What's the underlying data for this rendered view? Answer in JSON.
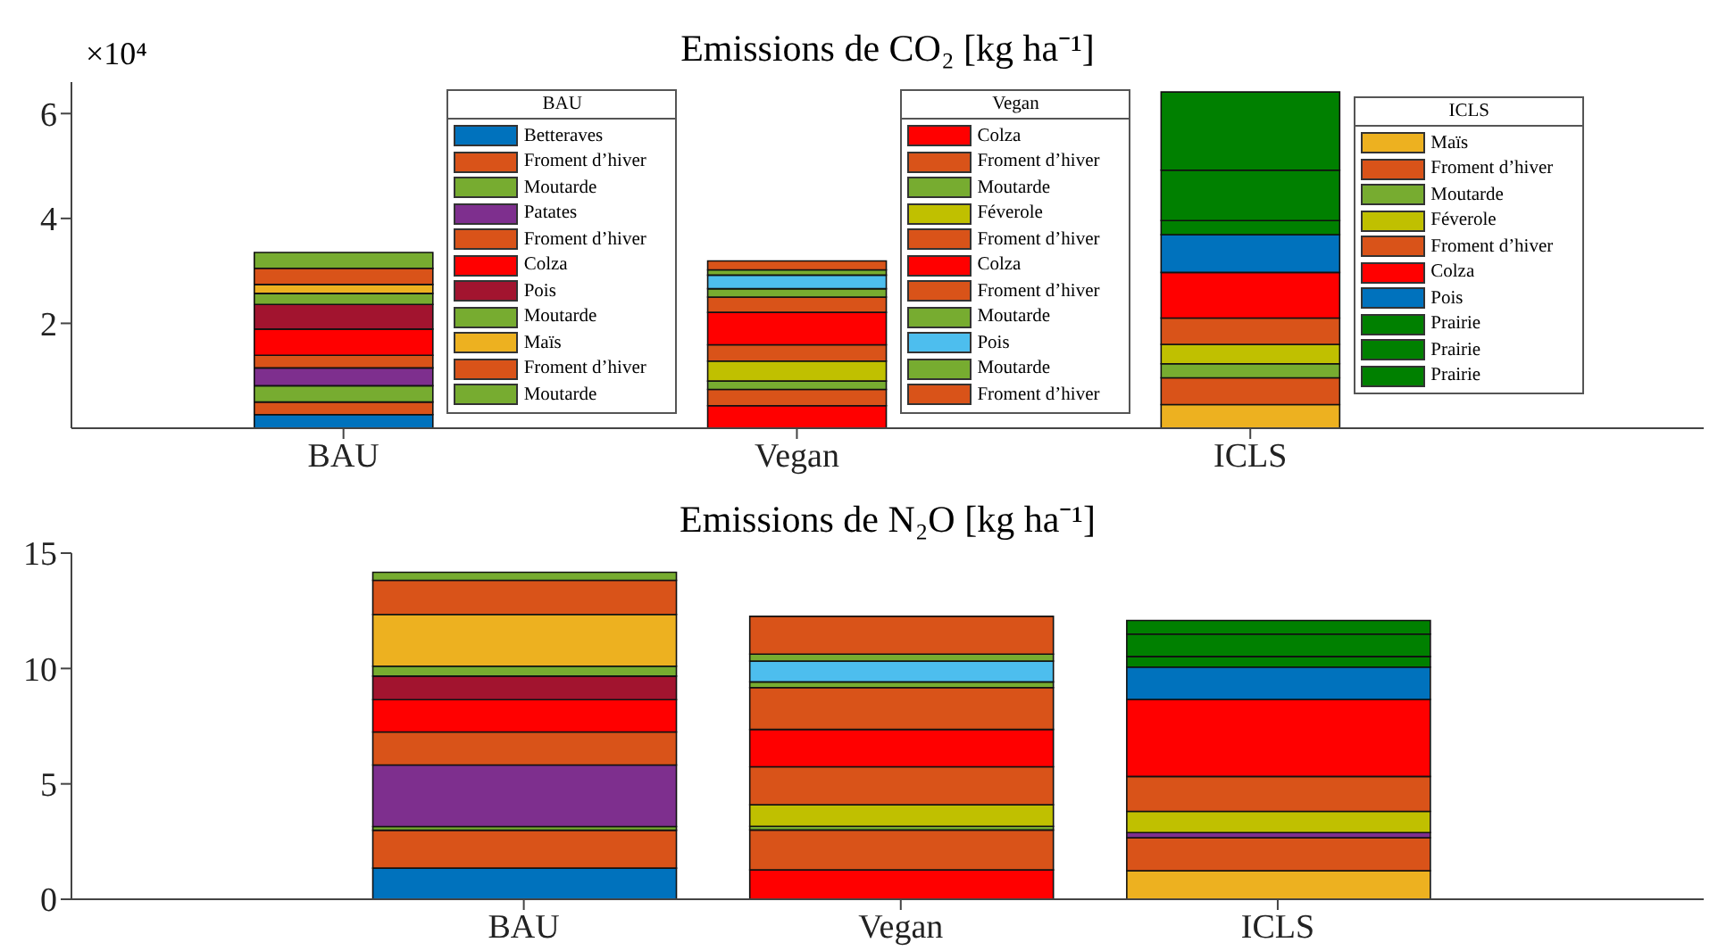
{
  "chart_data": [
    {
      "type": "bar",
      "stacked": true,
      "title": "Emissions de CO₂ [kg ha⁻¹]",
      "annotations": [
        "×10⁴"
      ],
      "categories": [
        "BAU",
        "Vegan",
        "ICLS"
      ],
      "ylim": [
        0,
        6.6
      ],
      "yticks": [
        2,
        4,
        6
      ],
      "grid": false,
      "legend": "right",
      "series": [
        {
          "name": "Betteraves",
          "color": "#0072bd",
          "values": [
            0.26,
            null,
            null
          ]
        },
        {
          "name": "Froment d’hiver",
          "color": "#d95319",
          "values": [
            0.24,
            null,
            null
          ]
        },
        {
          "name": "Moutarde",
          "color": "#77ac30",
          "values": [
            0.31,
            null,
            null
          ]
        },
        {
          "name": "Patates",
          "color": "#7e2f8e",
          "values": [
            0.34,
            null,
            null
          ]
        },
        {
          "name": "Froment d’hiver",
          "color": "#d95319",
          "values": [
            0.24,
            null,
            null
          ]
        },
        {
          "name": "Colza",
          "color": "#ff0000",
          "values": [
            0.5,
            null,
            null
          ]
        },
        {
          "name": "Pois",
          "color": "#a2142f",
          "values": [
            0.47,
            null,
            null
          ]
        },
        {
          "name": "Moutarde",
          "color": "#77ac30",
          "values": [
            0.21,
            null,
            null
          ]
        },
        {
          "name": "Maïs",
          "color": "#edb120",
          "values": [
            0.17,
            null,
            null
          ]
        },
        {
          "name": "Froment d’hiver",
          "color": "#d95319",
          "values": [
            0.31,
            null,
            null
          ]
        },
        {
          "name": "Moutarde",
          "color": "#77ac30",
          "values": [
            0.3,
            null,
            null
          ]
        },
        {
          "name": "Colza",
          "color": "#ff0000",
          "values": [
            null,
            0.43,
            null
          ]
        },
        {
          "name": "Froment d’hiver",
          "color": "#d95319",
          "values": [
            null,
            0.31,
            null
          ]
        },
        {
          "name": "Moutarde",
          "color": "#77ac30",
          "values": [
            null,
            0.16,
            null
          ]
        },
        {
          "name": "Féverole",
          "color": "#c0c000",
          "values": [
            null,
            0.38,
            null
          ]
        },
        {
          "name": "Froment d’hiver",
          "color": "#d95319",
          "values": [
            null,
            0.31,
            null
          ]
        },
        {
          "name": "Colza",
          "color": "#ff0000",
          "values": [
            null,
            0.62,
            null
          ]
        },
        {
          "name": "Froment d’hiver",
          "color": "#d95319",
          "values": [
            null,
            0.29,
            null
          ]
        },
        {
          "name": "Moutarde",
          "color": "#77ac30",
          "values": [
            null,
            0.16,
            null
          ]
        },
        {
          "name": "Pois",
          "color": "#4dbeee",
          "values": [
            null,
            0.26,
            null
          ]
        },
        {
          "name": "Moutarde",
          "color": "#77ac30",
          "values": [
            null,
            0.1,
            null
          ]
        },
        {
          "name": "Froment d’hiver",
          "color": "#d95319",
          "values": [
            null,
            0.17,
            null
          ]
        },
        {
          "name": "Maïs",
          "color": "#edb120",
          "values": [
            null,
            null,
            0.45
          ]
        },
        {
          "name": "Froment d’hiver",
          "color": "#d95319",
          "values": [
            null,
            null,
            0.51
          ]
        },
        {
          "name": "Moutarde",
          "color": "#77ac30",
          "values": [
            null,
            null,
            0.27
          ]
        },
        {
          "name": "Féverole",
          "color": "#c0c000",
          "values": [
            null,
            null,
            0.37
          ]
        },
        {
          "name": "Froment d’hiver",
          "color": "#d95319",
          "values": [
            null,
            null,
            0.5
          ]
        },
        {
          "name": "Colza",
          "color": "#ff0000",
          "values": [
            null,
            null,
            0.87
          ]
        },
        {
          "name": "Pois",
          "color": "#0072bd",
          "values": [
            null,
            null,
            0.72
          ]
        },
        {
          "name": "Prairie",
          "color": "#008000",
          "values": [
            null,
            null,
            0.27
          ]
        },
        {
          "name": "Prairie",
          "color": "#008000",
          "values": [
            null,
            null,
            0.96
          ]
        },
        {
          "name": "Prairie",
          "color": "#008000",
          "values": [
            null,
            null,
            1.49
          ]
        }
      ]
    },
    {
      "type": "bar",
      "stacked": true,
      "title": "Emissions de N₂O [kg ha⁻¹]",
      "categories": [
        "BAU",
        "Vegan",
        "ICLS"
      ],
      "ylim": [
        0,
        15
      ],
      "yticks": [
        0,
        5,
        10,
        15
      ],
      "grid": false,
      "series": [
        {
          "color": "#0072bd",
          "values": [
            1.35,
            null,
            null
          ]
        },
        {
          "color": "#d95319",
          "values": [
            1.64,
            null,
            null
          ]
        },
        {
          "color": "#77ac30",
          "values": [
            0.16,
            null,
            null
          ]
        },
        {
          "color": "#7e2f8e",
          "values": [
            2.67,
            null,
            null
          ]
        },
        {
          "color": "#d95319",
          "values": [
            1.43,
            null,
            null
          ]
        },
        {
          "color": "#ff0000",
          "values": [
            1.4,
            null,
            null
          ]
        },
        {
          "color": "#a2142f",
          "values": [
            1.02,
            null,
            null
          ]
        },
        {
          "color": "#77ac30",
          "values": [
            0.43,
            null,
            null
          ]
        },
        {
          "color": "#edb120",
          "values": [
            2.24,
            null,
            null
          ]
        },
        {
          "color": "#d95319",
          "values": [
            1.48,
            null,
            null
          ]
        },
        {
          "color": "#77ac30",
          "values": [
            0.35,
            null,
            null
          ]
        },
        {
          "color": "#ff0000",
          "values": [
            null,
            1.27,
            null
          ]
        },
        {
          "color": "#d95319",
          "values": [
            null,
            1.73,
            null
          ]
        },
        {
          "color": "#77ac30",
          "values": [
            null,
            0.16,
            null
          ]
        },
        {
          "color": "#c0c000",
          "values": [
            null,
            0.94,
            null
          ]
        },
        {
          "color": "#d95319",
          "values": [
            null,
            1.64,
            null
          ]
        },
        {
          "color": "#ff0000",
          "values": [
            null,
            1.62,
            null
          ]
        },
        {
          "color": "#d95319",
          "values": [
            null,
            1.81,
            null
          ]
        },
        {
          "color": "#77ac30",
          "values": [
            null,
            0.25,
            null
          ]
        },
        {
          "color": "#4dbeee",
          "values": [
            null,
            0.9,
            null
          ]
        },
        {
          "color": "#77ac30",
          "values": [
            null,
            0.3,
            null
          ]
        },
        {
          "color": "#d95319",
          "values": [
            null,
            1.64,
            null
          ]
        },
        {
          "color": "#edb120",
          "values": [
            null,
            null,
            1.24
          ]
        },
        {
          "color": "#d95319",
          "values": [
            null,
            null,
            1.43
          ]
        },
        {
          "color": "#7e2f8e",
          "values": [
            null,
            null,
            0.22
          ]
        },
        {
          "color": "#c0c000",
          "values": [
            null,
            null,
            0.92
          ]
        },
        {
          "color": "#d95319",
          "values": [
            null,
            null,
            1.51
          ]
        },
        {
          "color": "#ff0000",
          "values": [
            null,
            null,
            3.34
          ]
        },
        {
          "color": "#0072bd",
          "values": [
            null,
            null,
            1.4
          ]
        },
        {
          "color": "#008000",
          "values": [
            null,
            null,
            0.46
          ]
        },
        {
          "color": "#008000",
          "values": [
            null,
            null,
            0.97
          ]
        },
        {
          "color": "#008000",
          "values": [
            null,
            null,
            0.59
          ]
        }
      ]
    }
  ]
}
